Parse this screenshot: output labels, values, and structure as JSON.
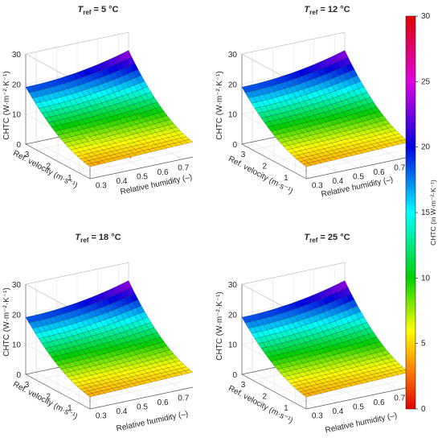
{
  "colorbar": {
    "ticks": [
      "0",
      "5",
      "10",
      "15",
      "20",
      "25",
      "30"
    ],
    "label": "CHTC (in W·m⁻²·K⁻¹)",
    "min": 0,
    "max": 30
  },
  "chart_data": [
    {
      "type": "surface",
      "title_prefix": "T",
      "title_sub": "ref",
      "title_suffix": " = 5 °C",
      "xlabel": "Relative humidity (–)",
      "ylabel": "Ref. velocity (m·s⁻¹)",
      "zlabel": "CHTC (W·m⁻²·K⁻¹)",
      "x_ticks": [
        "0.3",
        "0.4",
        "0.5",
        "0.6",
        "0.7"
      ],
      "y_ticks": [
        "1",
        "2",
        "3"
      ],
      "z_ticks": [
        "0",
        "10",
        "20",
        "30"
      ],
      "xlim": [
        0.25,
        0.75
      ],
      "ylim": [
        0.5,
        3.5
      ],
      "zlim": [
        0,
        30
      ],
      "surface": {
        "z_at_min_velocity_min_rh": 4,
        "z_at_min_velocity_max_rh": 5,
        "z_at_max_velocity_min_rh": 19,
        "z_at_max_velocity_max_rh": 24
      },
      "scatter_points": true
    },
    {
      "type": "surface",
      "title_prefix": "T",
      "title_sub": "ref",
      "title_suffix": " = 12 °C",
      "xlabel": "Relative humidity (–)",
      "ylabel": "Ref. velocity (m·s⁻¹)",
      "zlabel": "CHTC (W·m⁻²·K⁻¹)",
      "x_ticks": [
        "0.3",
        "0.4",
        "0.5",
        "0.6",
        "0.7"
      ],
      "y_ticks": [
        "1",
        "2",
        "3"
      ],
      "z_ticks": [
        "0",
        "10",
        "20",
        "30"
      ],
      "xlim": [
        0.25,
        0.75
      ],
      "ylim": [
        0.5,
        3.5
      ],
      "zlim": [
        0,
        30
      ],
      "surface": {
        "z_at_min_velocity_min_rh": 4,
        "z_at_min_velocity_max_rh": 5,
        "z_at_max_velocity_min_rh": 19,
        "z_at_max_velocity_max_rh": 24
      },
      "scatter_points": false
    },
    {
      "type": "surface",
      "title_prefix": "T",
      "title_sub": "ref",
      "title_suffix": " = 18 °C",
      "xlabel": "Relative humidity (–)",
      "ylabel": "Ref. velocity (m·s⁻¹)",
      "zlabel": "CHTC (W·m⁻²·K⁻¹)",
      "x_ticks": [
        "0.3",
        "0.4",
        "0.5",
        "0.6",
        "0.7"
      ],
      "y_ticks": [
        "1",
        "2",
        "3"
      ],
      "z_ticks": [
        "0",
        "10",
        "20",
        "30"
      ],
      "xlim": [
        0.25,
        0.75
      ],
      "ylim": [
        0.5,
        3.5
      ],
      "zlim": [
        0,
        30
      ],
      "surface": {
        "z_at_min_velocity_min_rh": 4,
        "z_at_min_velocity_max_rh": 5,
        "z_at_max_velocity_min_rh": 19,
        "z_at_max_velocity_max_rh": 24
      },
      "scatter_points": false
    },
    {
      "type": "surface",
      "title_prefix": "T",
      "title_sub": "ref",
      "title_suffix": " = 25 °C",
      "xlabel": "Relative humidity (–)",
      "ylabel": "Ref. velocity (m·s⁻¹)",
      "zlabel": "CHTC (W·m⁻²·K⁻¹)",
      "x_ticks": [
        "0.3",
        "0.4",
        "0.5",
        "0.6",
        "0.7"
      ],
      "y_ticks": [
        "1",
        "2",
        "3"
      ],
      "z_ticks": [
        "0",
        "10",
        "20",
        "30"
      ],
      "xlim": [
        0.25,
        0.75
      ],
      "ylim": [
        0.5,
        3.5
      ],
      "zlim": [
        0,
        30
      ],
      "surface": {
        "z_at_min_velocity_min_rh": 4,
        "z_at_min_velocity_max_rh": 5,
        "z_at_max_velocity_min_rh": 19,
        "z_at_max_velocity_max_rh": 24
      },
      "scatter_points": false
    }
  ]
}
